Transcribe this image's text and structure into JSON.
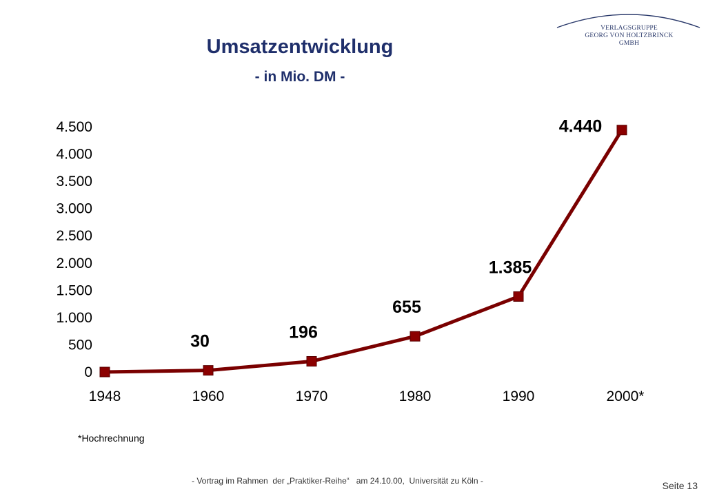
{
  "chart_data": {
    "type": "line",
    "title": "Umsatzentwicklung",
    "subtitle": "- in Mio. DM -",
    "categories": [
      "1948",
      "1960",
      "1970",
      "1980",
      "1990",
      "2000*"
    ],
    "values": [
      0,
      30,
      196,
      655,
      1385,
      4440
    ],
    "data_labels": [
      "",
      "30",
      "196",
      "655",
      "1.385",
      "4.440"
    ],
    "yticks": [
      0,
      500,
      1000,
      1500,
      2000,
      2500,
      3000,
      3500,
      4000,
      4500
    ],
    "ytick_labels": [
      "0",
      "500",
      "1.000",
      "1.500",
      "2.000",
      "2.500",
      "3.000",
      "3.500",
      "4.000",
      "4.500"
    ],
    "ylim": [
      0,
      4500
    ],
    "grid": false,
    "line_color": "#7a0000",
    "marker_color": "#8b0000"
  },
  "logo": {
    "line1": "VERLAGSGRUPPE",
    "line2": "GEORG VON HOLTZBRINCK",
    "line3": "GMBH"
  },
  "footnote": "*Hochrechnung",
  "footer": "- Vortrag im Rahmen  der „Praktiker-Reihe“   am 24.10.00,  Universität zu Köln -",
  "page_number": "Seite 13"
}
